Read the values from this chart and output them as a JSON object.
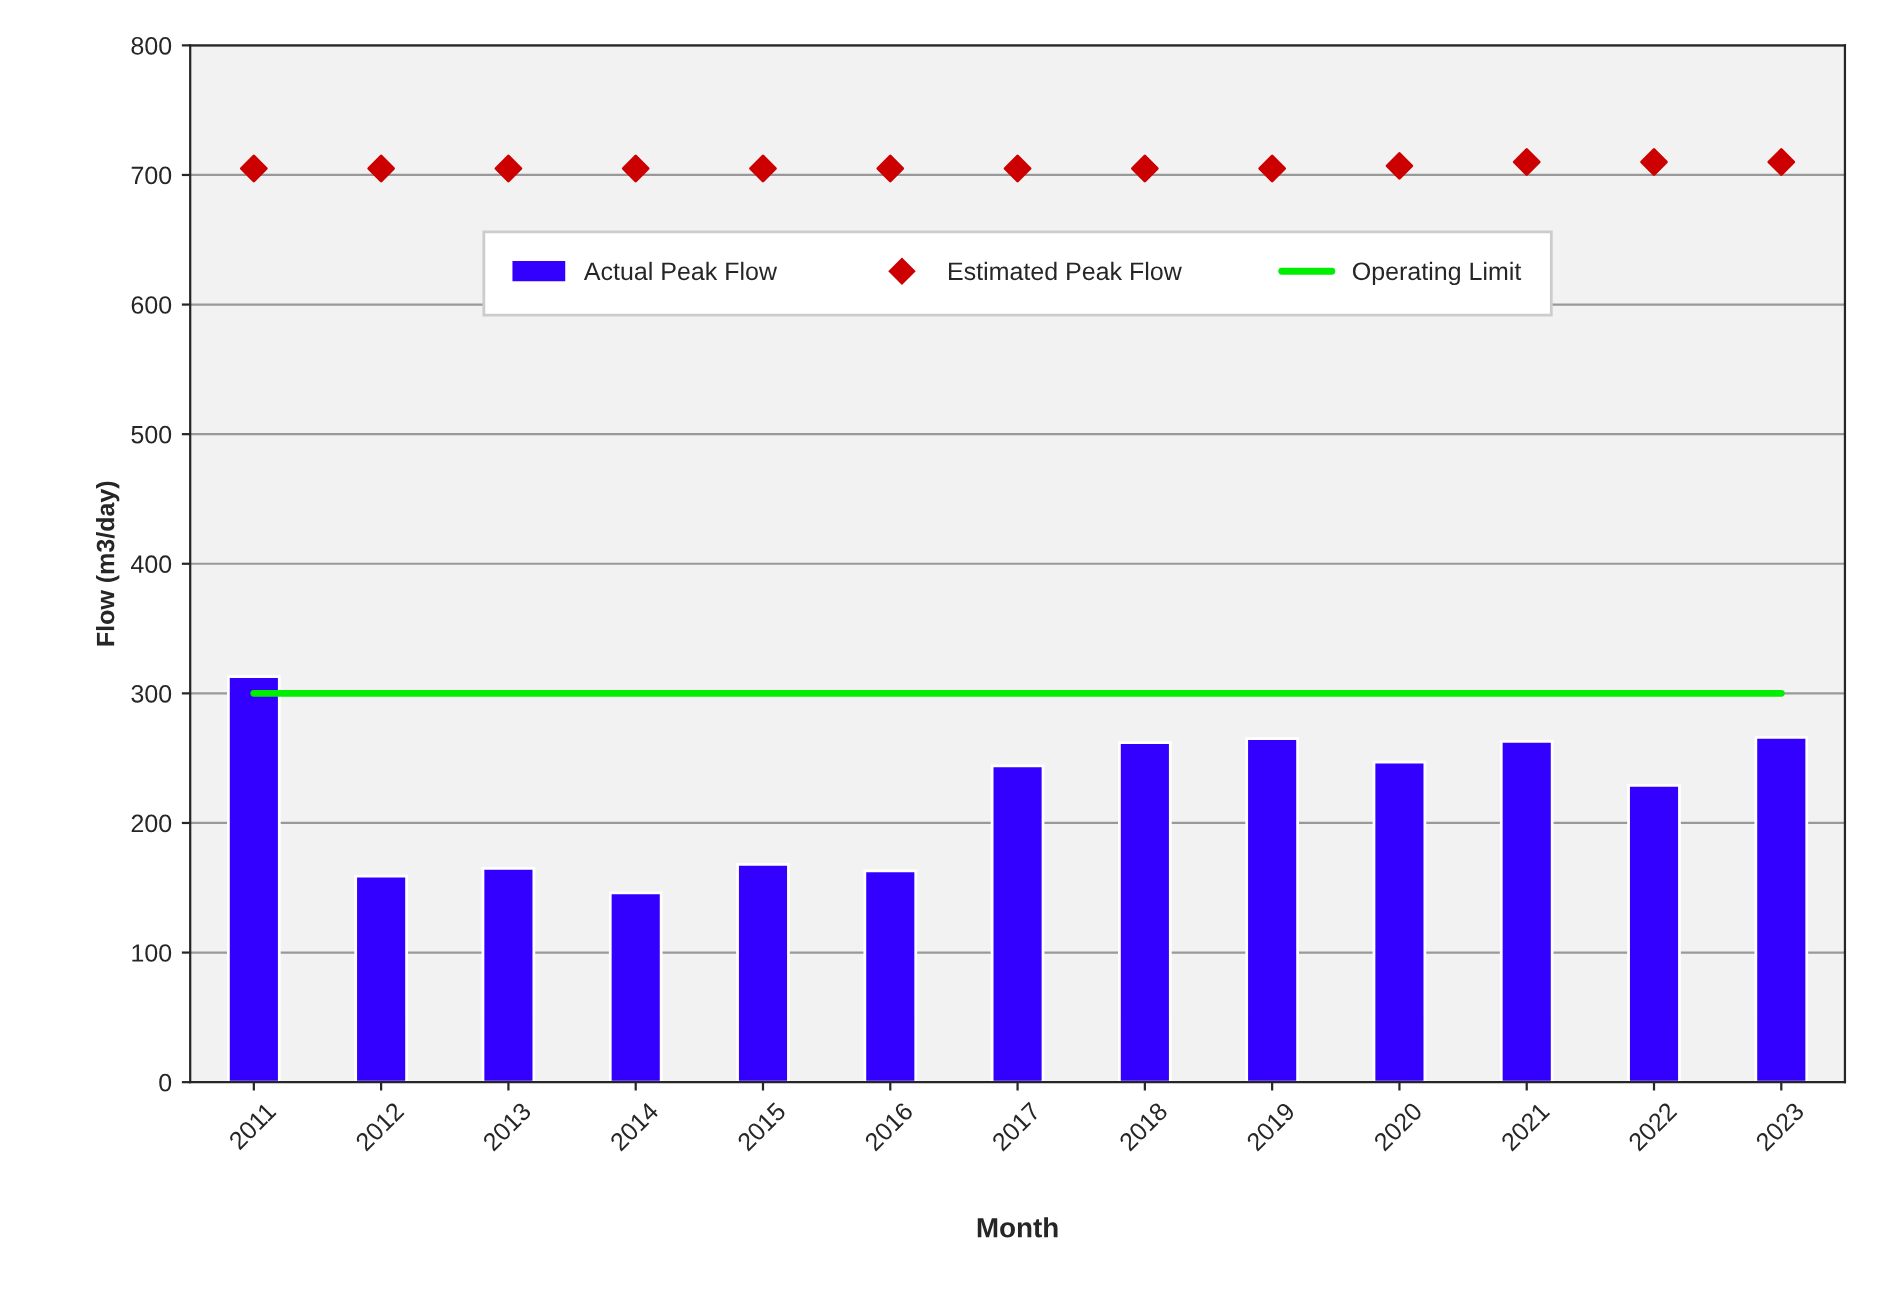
{
  "chart_data": {
    "type": "bar",
    "xlabel": "Month",
    "ylabel": "Flow (m3/day)",
    "categories": [
      "2011",
      "2012",
      "2013",
      "2014",
      "2015",
      "2016",
      "2017",
      "2018",
      "2019",
      "2020",
      "2021",
      "2022",
      "2023"
    ],
    "series": [
      {
        "name": "Actual Peak Flow",
        "color": "#3300ff",
        "values": [
          313,
          159,
          165,
          146,
          168,
          163,
          244,
          262,
          265,
          247,
          263,
          229,
          266
        ]
      },
      {
        "name": "Estimated Peak Flow",
        "type": "scatter",
        "color": "#cc0000",
        "marker": "diamond",
        "values": [
          705,
          705,
          705,
          705,
          705,
          705,
          705,
          705,
          705,
          707,
          710,
          710,
          710
        ]
      },
      {
        "name": "Operating Limit",
        "type": "line",
        "color": "#00ee00",
        "values": [
          300,
          300,
          300,
          300,
          300,
          300,
          300,
          300,
          300,
          300,
          300,
          300,
          300
        ]
      }
    ],
    "ylim": [
      0,
      800
    ],
    "yticks": [
      0,
      100,
      200,
      300,
      400,
      500,
      600,
      700,
      800
    ],
    "grid": "y",
    "legend": "top"
  }
}
